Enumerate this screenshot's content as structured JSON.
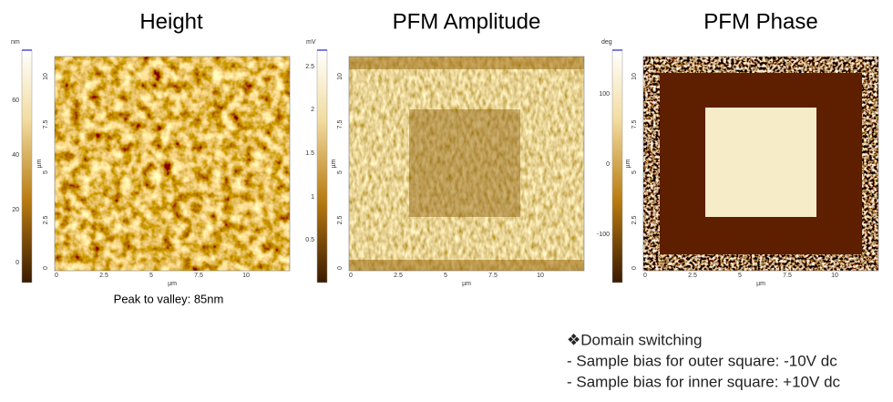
{
  "panels": [
    {
      "title": "Height",
      "colorbar_unit": "nm",
      "colorbar_ticks": [
        "0",
        "20",
        "40",
        "60"
      ],
      "axis_ticks": [
        "0",
        "2.5",
        "5",
        "7.5",
        "10"
      ],
      "x_label": "µm",
      "y_label": "µm"
    },
    {
      "title": "PFM Amplitude",
      "colorbar_unit": "mV",
      "colorbar_ticks": [
        "0.5",
        "1",
        "1.5",
        "2",
        "2.5"
      ],
      "axis_ticks": [
        "0",
        "2.5",
        "5",
        "7.5",
        "10"
      ],
      "x_label": "µm",
      "y_label": "µm"
    },
    {
      "title": "PFM Phase",
      "colorbar_unit": "deg",
      "colorbar_ticks": [
        "-100",
        "0",
        "100"
      ],
      "axis_ticks": [
        "0",
        "2.5",
        "5",
        "7.5",
        "10"
      ],
      "x_label": "µm",
      "y_label": "µm"
    }
  ],
  "caption": "Peak to valley: 85nm",
  "notes": [
    "❖Domain switching",
    "- Sample bias for outer square: -10V dc",
    "- Sample bias for inner square: +10V dc"
  ]
}
